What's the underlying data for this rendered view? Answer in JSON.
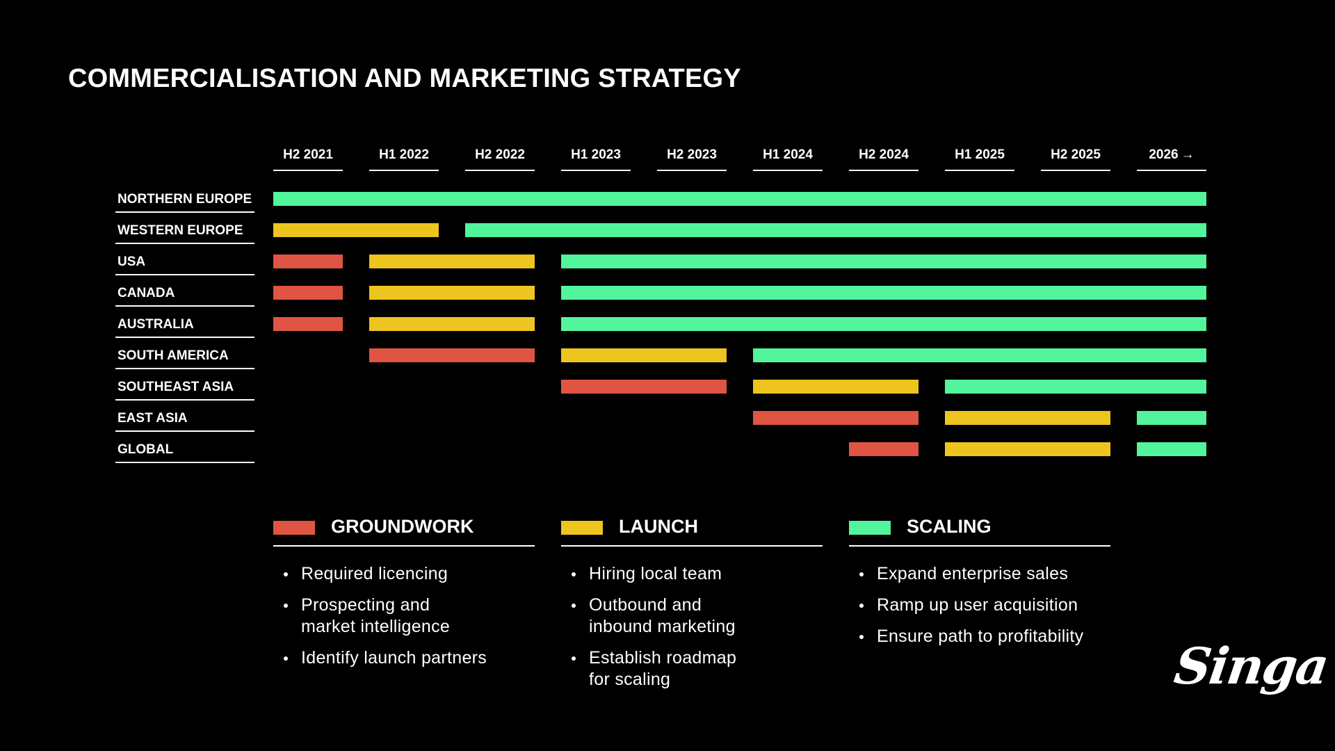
{
  "title": "COMMERCIALISATION AND MARKETING STRATEGY",
  "periods": [
    "H2 2021",
    "H1 2022",
    "H2 2022",
    "H1 2023",
    "H2 2023",
    "H1 2024",
    "H2 2024",
    "H1 2025",
    "H2 2025",
    "2026"
  ],
  "last_period_arrow": "→",
  "regions": [
    "NORTHERN EUROPE",
    "WESTERN EUROPE",
    "USA",
    "CANADA",
    "AUSTRALIA",
    "SOUTH AMERICA",
    "SOUTHEAST ASIA",
    "EAST ASIA",
    "GLOBAL"
  ],
  "colors": {
    "groundwork": "#e05443",
    "launch": "#eec41f",
    "scaling": "#52f59b"
  },
  "timeline": [
    {
      "region": "NORTHERN EUROPE",
      "segments": [
        {
          "phase": "scaling",
          "start": 0,
          "end": 9
        }
      ]
    },
    {
      "region": "WESTERN EUROPE",
      "segments": [
        {
          "phase": "launch",
          "start": 0,
          "end": 1
        },
        {
          "phase": "scaling",
          "start": 2,
          "end": 9
        }
      ]
    },
    {
      "region": "USA",
      "segments": [
        {
          "phase": "groundwork",
          "start": 0,
          "end": 0
        },
        {
          "phase": "launch",
          "start": 1,
          "end": 2
        },
        {
          "phase": "scaling",
          "start": 3,
          "end": 9
        }
      ]
    },
    {
      "region": "CANADA",
      "segments": [
        {
          "phase": "groundwork",
          "start": 0,
          "end": 0
        },
        {
          "phase": "launch",
          "start": 1,
          "end": 2
        },
        {
          "phase": "scaling",
          "start": 3,
          "end": 9
        }
      ]
    },
    {
      "region": "AUSTRALIA",
      "segments": [
        {
          "phase": "groundwork",
          "start": 0,
          "end": 0
        },
        {
          "phase": "launch",
          "start": 1,
          "end": 2
        },
        {
          "phase": "scaling",
          "start": 3,
          "end": 9
        }
      ]
    },
    {
      "region": "SOUTH AMERICA",
      "segments": [
        {
          "phase": "groundwork",
          "start": 1,
          "end": 2
        },
        {
          "phase": "launch",
          "start": 3,
          "end": 4
        },
        {
          "phase": "scaling",
          "start": 5,
          "end": 9
        }
      ]
    },
    {
      "region": "SOUTHEAST ASIA",
      "segments": [
        {
          "phase": "groundwork",
          "start": 3,
          "end": 4
        },
        {
          "phase": "launch",
          "start": 5,
          "end": 6
        },
        {
          "phase": "scaling",
          "start": 7,
          "end": 9
        }
      ]
    },
    {
      "region": "EAST ASIA",
      "segments": [
        {
          "phase": "groundwork",
          "start": 5,
          "end": 6
        },
        {
          "phase": "launch",
          "start": 7,
          "end": 8
        },
        {
          "phase": "scaling",
          "start": 9,
          "end": 9
        }
      ]
    },
    {
      "region": "GLOBAL",
      "segments": [
        {
          "phase": "groundwork",
          "start": 6,
          "end": 6
        },
        {
          "phase": "launch",
          "start": 7,
          "end": 8
        },
        {
          "phase": "scaling",
          "start": 9,
          "end": 9
        }
      ]
    }
  ],
  "legend": [
    {
      "key": "groundwork",
      "label": "GROUNDWORK",
      "items": [
        "Required licencing",
        "Prospecting and\nmarket intelligence",
        "Identify launch partners"
      ]
    },
    {
      "key": "launch",
      "label": "LAUNCH",
      "items": [
        "Hiring local team",
        "Outbound and\ninbound marketing",
        "Establish roadmap\nfor scaling"
      ]
    },
    {
      "key": "scaling",
      "label": "SCALING",
      "items": [
        "Expand enterprise sales",
        "Ramp up user acquisition",
        "Ensure path to profitability"
      ]
    }
  ],
  "logo": "Singa"
}
